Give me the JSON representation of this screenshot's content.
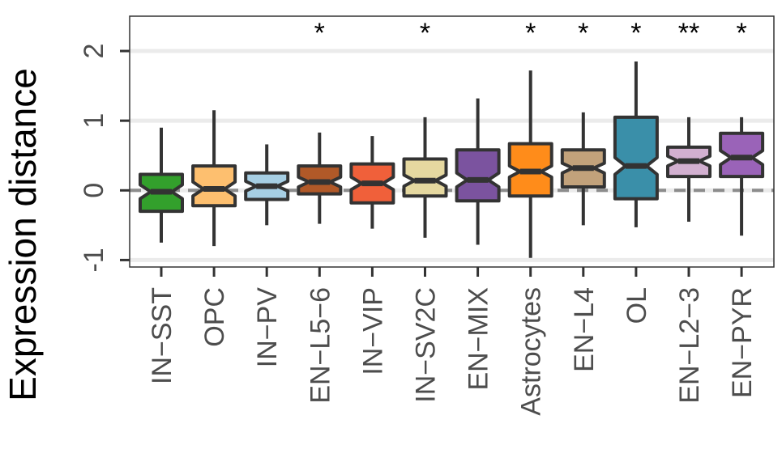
{
  "chart_data": {
    "type": "boxplot",
    "ylabel": "Expression distance",
    "xlabel": "",
    "ylim": [
      -1.1,
      2.5
    ],
    "yticks": [
      -1,
      0,
      1,
      2
    ],
    "ytick_labels": [
      "-1",
      "0",
      "1",
      "2"
    ],
    "reference_line": 0,
    "grid": true,
    "notched": true,
    "categories": [
      "IN−SST",
      "OPC",
      "IN−PV",
      "EN−L5−6",
      "IN−VIP",
      "IN−SV2C",
      "EN−MIX",
      "Astrocytes",
      "EN−L4",
      "OL",
      "EN−L2−3",
      "EN−PYR"
    ],
    "colors": [
      "#33a02c",
      "#fdbf6f",
      "#a6cee3",
      "#b15928",
      "#f0603a",
      "#e5d8a0",
      "#7b539f",
      "#ff8c1a",
      "#c2a27b",
      "#3a8fa9",
      "#d2b0d0",
      "#9a63b8"
    ],
    "boxes": [
      {
        "whisker_low": -0.75,
        "q1": -0.3,
        "median": -0.02,
        "q3": 0.23,
        "whisker_high": 0.9,
        "notch": 0.1
      },
      {
        "whisker_low": -0.8,
        "q1": -0.22,
        "median": 0.02,
        "q3": 0.35,
        "whisker_high": 1.15,
        "notch": 0.1
      },
      {
        "whisker_low": -0.5,
        "q1": -0.13,
        "median": 0.06,
        "q3": 0.25,
        "whisker_high": 0.66,
        "notch": 0.07
      },
      {
        "whisker_low": -0.48,
        "q1": -0.05,
        "median": 0.12,
        "q3": 0.35,
        "whisker_high": 0.83,
        "notch": 0.07
      },
      {
        "whisker_low": -0.55,
        "q1": -0.18,
        "median": 0.1,
        "q3": 0.38,
        "whisker_high": 0.78,
        "notch": 0.09
      },
      {
        "whisker_low": -0.68,
        "q1": -0.08,
        "median": 0.14,
        "q3": 0.45,
        "whisker_high": 1.05,
        "notch": 0.08
      },
      {
        "whisker_low": -0.78,
        "q1": -0.15,
        "median": 0.15,
        "q3": 0.58,
        "whisker_high": 1.32,
        "notch": 0.1
      },
      {
        "whisker_low": -0.97,
        "q1": -0.08,
        "median": 0.27,
        "q3": 0.67,
        "whisker_high": 1.72,
        "notch": 0.08
      },
      {
        "whisker_low": -0.5,
        "q1": 0.05,
        "median": 0.32,
        "q3": 0.58,
        "whisker_high": 1.12,
        "notch": 0.07
      },
      {
        "whisker_low": -0.53,
        "q1": -0.12,
        "median": 0.35,
        "q3": 1.05,
        "whisker_high": 1.85,
        "notch": 0.12
      },
      {
        "whisker_low": -0.45,
        "q1": 0.2,
        "median": 0.42,
        "q3": 0.62,
        "whisker_high": 1.05,
        "notch": 0.07
      },
      {
        "whisker_low": -0.65,
        "q1": 0.2,
        "median": 0.47,
        "q3": 0.82,
        "whisker_high": 1.05,
        "notch": 0.1
      }
    ],
    "significance": [
      "",
      "",
      "",
      "*",
      "",
      "*",
      "",
      "*",
      "*",
      "*",
      "**",
      "*"
    ]
  }
}
